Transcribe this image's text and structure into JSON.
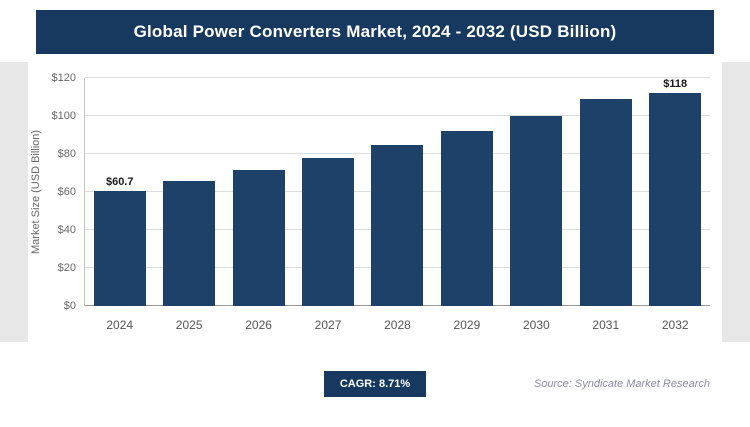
{
  "header": {
    "title": "Global Power Converters Market, 2024 - 2032 (USD Billion)"
  },
  "chart_data": {
    "type": "bar",
    "title": "Global Power Converters Market, 2024 - 2032 (USD Billion)",
    "categories": [
      "2024",
      "2025",
      "2026",
      "2027",
      "2028",
      "2029",
      "2030",
      "2031",
      "2032"
    ],
    "values": [
      60.7,
      66.0,
      71.7,
      78.0,
      84.8,
      92.1,
      100.2,
      108.9,
      118
    ],
    "point_labels": [
      "$60.7",
      "",
      "",
      "",
      "",
      "",
      "",
      "",
      "$118"
    ],
    "xlabel": "",
    "ylabel": "Market Size (USD Billion)",
    "ylim": [
      0,
      120
    ],
    "ytick_labels": [
      "$0",
      "$20",
      "$40",
      "$60",
      "$80",
      "$100",
      "$120"
    ],
    "grid": true,
    "legend": "none",
    "bar_color": "#1d4168"
  },
  "footer": {
    "cagr_label": "CAGR: 8.71%",
    "source": "Source: Syndicate Market Research"
  },
  "colors": {
    "accent_navy": "#17395f",
    "bar_navy": "#1d4168",
    "gridline": "#dddddd",
    "edge_strip": "#e7e7e7"
  }
}
